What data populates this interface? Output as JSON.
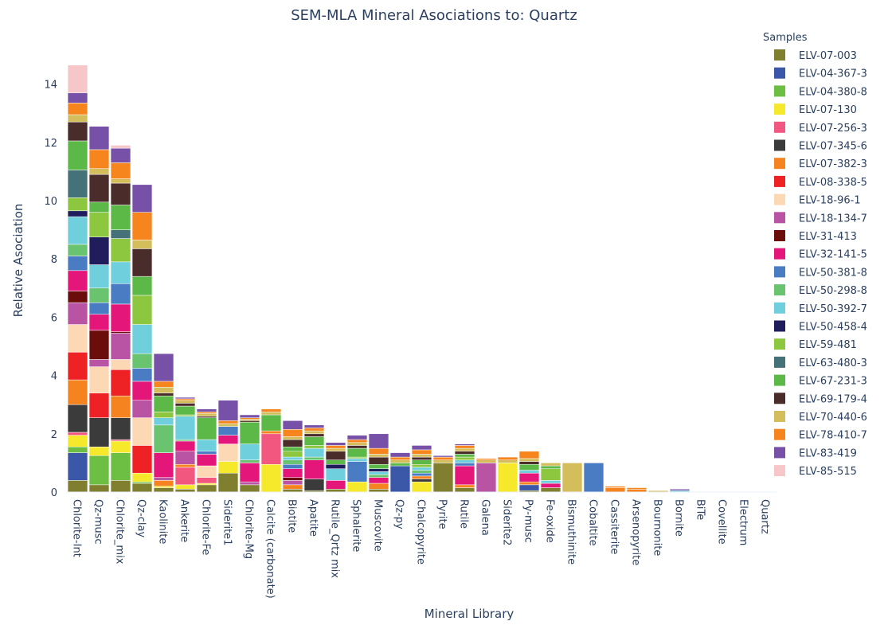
{
  "chart_data": {
    "type": "bar",
    "stacked": true,
    "title": "SEM-MLA Mineral Asociations to: Quartz",
    "xlabel": "Mineral Library",
    "ylabel": "Relative Asociation",
    "ylim": [
      0,
      15.3
    ],
    "yticks": [
      0,
      2,
      4,
      6,
      8,
      10,
      12,
      14
    ],
    "gridlines": false,
    "legend_title": "Samples",
    "legend_placement": "right",
    "categories": [
      "Chlorite-Int",
      "Qz-musc",
      "Chlorite_mix",
      "Qz-clay",
      "Kaolinite",
      "Ankerite",
      "Chlorite-Fe",
      "Siderite1",
      "Chlorite-Mg",
      "Calcite (carbonate)",
      "Biotite",
      "Apatite",
      "Rutile_Qrtz mix",
      "Sphalerite",
      "Muscovite",
      "Qz-py",
      "Chalcopyrite",
      "Pyrite",
      "Rutile",
      "Galena",
      "Siderite2",
      "Py-musc",
      "Fe-oxide",
      "Bismuthinite",
      "Cobaltite",
      "Cassiterite",
      "Arsenopyrite",
      "Bournonite",
      "Bornite",
      "BiTe",
      "Covellite",
      "Electrum",
      "Quartz"
    ],
    "series": [
      {
        "name": "ELV-07-003",
        "color": "#7f7f2f",
        "values": [
          0.4,
          0.25,
          0.4,
          0.3,
          0.15,
          0.1,
          0.25,
          0.65,
          0.25,
          0,
          0.1,
          0.05,
          0.1,
          0,
          0.1,
          0,
          0,
          1,
          0.15,
          0,
          0,
          0.05,
          0.15,
          0,
          0,
          0,
          0,
          0,
          0,
          0,
          0,
          0,
          0
        ]
      },
      {
        "name": "ELV-04-367-3",
        "color": "#3b57a8",
        "values": [
          0.95,
          0,
          0,
          0,
          0,
          0,
          0,
          0,
          0,
          0,
          0,
          0,
          0,
          0,
          0,
          0.9,
          0,
          0,
          0,
          0,
          0,
          0.2,
          0,
          0,
          0,
          0,
          0,
          0,
          0,
          0,
          0,
          0,
          0
        ]
      },
      {
        "name": "ELV-04-380-8",
        "color": "#6dbf43",
        "values": [
          0.2,
          1,
          0.95,
          0.05,
          0,
          0,
          0,
          0,
          0,
          0,
          0,
          0,
          0,
          0,
          0,
          0,
          0,
          0,
          0,
          0,
          0,
          0,
          0,
          0,
          0,
          0,
          0,
          0,
          0,
          0,
          0,
          0,
          0
        ]
      },
      {
        "name": "ELV-07-130",
        "color": "#f6e82a",
        "values": [
          0.4,
          0.3,
          0.4,
          0.3,
          0.05,
          0.15,
          0.05,
          0.4,
          0,
          0.95,
          0,
          0,
          0,
          0.35,
          0,
          0,
          0.35,
          0,
          0,
          0,
          1,
          0,
          0,
          0,
          0,
          0,
          0,
          0,
          0,
          0,
          0,
          0,
          0
        ]
      },
      {
        "name": "ELV-07-256-3",
        "color": "#f2577f",
        "values": [
          0.1,
          0,
          0.05,
          0,
          0,
          0.6,
          0.2,
          0,
          0,
          1.05,
          0,
          0,
          0,
          0,
          0,
          0,
          0,
          0,
          0,
          0,
          0,
          0,
          0,
          0,
          0,
          0,
          0,
          0,
          0,
          0,
          0,
          0,
          0
        ]
      },
      {
        "name": "ELV-07-345-6",
        "color": "#3b3b3b",
        "values": [
          0.95,
          1,
          0.75,
          0,
          0,
          0,
          0,
          0,
          0,
          0,
          0,
          0.4,
          0,
          0,
          0,
          0,
          0.1,
          0,
          0,
          0,
          0,
          0,
          0,
          0,
          0,
          0,
          0,
          0,
          0,
          0,
          0,
          0,
          0
        ]
      },
      {
        "name": "ELV-07-382-3",
        "color": "#f5831f",
        "values": [
          0.85,
          0,
          0.75,
          0,
          0.2,
          0.1,
          0,
          0,
          0,
          0.1,
          0.15,
          0,
          0,
          0,
          0.2,
          0,
          0.1,
          0,
          0.1,
          0,
          0,
          0.1,
          0,
          0,
          0,
          0.15,
          0.1,
          0,
          0,
          0,
          0,
          0,
          0
        ]
      },
      {
        "name": "ELV-08-338-5",
        "color": "#ee2125",
        "values": [
          0.95,
          0.85,
          0.9,
          0.95,
          0,
          0,
          0,
          0,
          0,
          0,
          0,
          0,
          0,
          0,
          0,
          0,
          0,
          0,
          0,
          0,
          0,
          0,
          0,
          0,
          0,
          0,
          0,
          0,
          0,
          0,
          0,
          0,
          0
        ]
      },
      {
        "name": "ELV-18-96-1",
        "color": "#fcd8b5",
        "values": [
          0.95,
          0.9,
          0.35,
          0.95,
          0,
          0,
          0.4,
          0.6,
          0,
          0,
          0,
          0,
          0,
          0,
          0,
          0,
          0,
          0,
          0,
          0,
          0,
          0,
          0,
          0,
          0,
          0,
          0,
          0,
          0,
          0,
          0,
          0,
          0
        ]
      },
      {
        "name": "ELV-18-134-7",
        "color": "#b954a5",
        "values": [
          0.75,
          0.25,
          0.9,
          0.6,
          0.1,
          0.45,
          0,
          0,
          0.1,
          0,
          0.15,
          0,
          0,
          0,
          0,
          0,
          0,
          0,
          0,
          1,
          0,
          0,
          0,
          0,
          0,
          0,
          0,
          0,
          0,
          0,
          0,
          0,
          0
        ]
      },
      {
        "name": "ELV-31-413",
        "color": "#6a0d0b",
        "values": [
          0.4,
          1,
          0.05,
          0,
          0,
          0,
          0,
          0,
          0,
          0,
          0.1,
          0,
          0,
          0,
          0,
          0,
          0,
          0,
          0,
          0,
          0,
          0,
          0,
          0,
          0,
          0,
          0,
          0,
          0,
          0,
          0,
          0,
          0
        ]
      },
      {
        "name": "ELV-32-141-5",
        "color": "#e4167a",
        "values": [
          0.7,
          0.55,
          0.95,
          0.65,
          0.85,
          0.35,
          0.4,
          0.3,
          0.65,
          0,
          0.3,
          0.65,
          0.3,
          0,
          0.2,
          0,
          0,
          0,
          0.65,
          0,
          0,
          0.3,
          0.15,
          0,
          0,
          0,
          0,
          0,
          0,
          0,
          0,
          0,
          0
        ]
      },
      {
        "name": "ELV-50-381-8",
        "color": "#4a7cc4",
        "values": [
          0.5,
          0.4,
          0.7,
          0.45,
          0,
          0,
          0.1,
          0.3,
          0,
          0,
          0.15,
          0,
          0,
          0.7,
          0,
          0,
          0.1,
          0,
          0.1,
          0,
          0,
          0,
          0,
          0,
          1,
          0,
          0,
          0,
          0,
          0,
          0,
          0,
          0
        ]
      },
      {
        "name": "ELV-50-298-8",
        "color": "#69c36f",
        "values": [
          0.4,
          0.5,
          0,
          0.5,
          0.95,
          0.05,
          0,
          0,
          0.1,
          0,
          0.15,
          0.1,
          0,
          0,
          0.1,
          0,
          0.1,
          0,
          0,
          0,
          0,
          0,
          0,
          0,
          0,
          0,
          0,
          0,
          0,
          0,
          0,
          0,
          0
        ]
      },
      {
        "name": "ELV-50-392-7",
        "color": "#6fcfdd",
        "values": [
          0.95,
          0.8,
          0.75,
          1,
          0.25,
          0.8,
          0.4,
          0,
          0.55,
          0,
          0.1,
          0.3,
          0.4,
          0.1,
          0.1,
          0,
          0.1,
          0,
          0.1,
          0,
          0,
          0.1,
          0.1,
          0,
          0,
          0,
          0,
          0,
          0.05,
          0,
          0,
          0,
          0
        ]
      },
      {
        "name": "ELV-50-458-4",
        "color": "#1f1d5c",
        "values": [
          0.2,
          0.95,
          0,
          0,
          0,
          0,
          0,
          0,
          0,
          0,
          0,
          0,
          0.15,
          0,
          0.1,
          0,
          0,
          0,
          0,
          0,
          0,
          0,
          0,
          0,
          0,
          0,
          0,
          0,
          0,
          0,
          0,
          0,
          0
        ]
      },
      {
        "name": "ELV-59-481",
        "color": "#8dc73f",
        "values": [
          0.45,
          0.85,
          0.8,
          1,
          0.2,
          0.05,
          0,
          0,
          0,
          0,
          0.2,
          0.1,
          0,
          0.05,
          0,
          0,
          0.1,
          0,
          0.1,
          0,
          0,
          0,
          0.4,
          0,
          0,
          0,
          0,
          0,
          0,
          0,
          0,
          0,
          0
        ]
      },
      {
        "name": "ELV-63-480-3",
        "color": "#457179",
        "values": [
          0.95,
          0,
          0.3,
          0,
          0,
          0,
          0,
          0,
          0,
          0,
          0,
          0,
          0,
          0,
          0,
          0,
          0,
          0,
          0,
          0,
          0,
          0,
          0,
          0,
          0,
          0,
          0,
          0,
          0,
          0,
          0,
          0,
          0
        ]
      },
      {
        "name": "ELV-67-231-3",
        "color": "#5cb847",
        "values": [
          1,
          0.35,
          0.85,
          0.65,
          0.55,
          0.3,
          0.75,
          0,
          0.75,
          0.55,
          0.15,
          0.3,
          0.15,
          0.3,
          0.15,
          0.1,
          0.15,
          0,
          0.1,
          0,
          0,
          0.2,
          0.1,
          0,
          0,
          0,
          0,
          0,
          0,
          0,
          0,
          0,
          0
        ]
      },
      {
        "name": "ELV-69-179-4",
        "color": "#4a2c2a",
        "values": [
          0.65,
          0.95,
          0.75,
          0.95,
          0.1,
          0.1,
          0.05,
          0,
          0.05,
          0,
          0.25,
          0.1,
          0.3,
          0.1,
          0.25,
          0,
          0.1,
          0,
          0.1,
          0,
          0,
          0.1,
          0,
          0,
          0,
          0,
          0,
          0,
          0,
          0,
          0,
          0,
          0
        ]
      },
      {
        "name": "ELV-70-440-6",
        "color": "#d4bd5b",
        "values": [
          0.25,
          0.2,
          0.15,
          0.3,
          0.2,
          0.1,
          0.1,
          0.1,
          0.05,
          0.1,
          0.1,
          0.1,
          0.1,
          0.1,
          0.1,
          0.1,
          0.1,
          0.1,
          0.1,
          0.1,
          0.1,
          0.1,
          0.1,
          1,
          0,
          0,
          0,
          0.05,
          0,
          0,
          0,
          0,
          0
        ]
      },
      {
        "name": "ELV-78-410-7",
        "color": "#f7851d",
        "values": [
          0.4,
          0.65,
          0.55,
          0.95,
          0.2,
          0.05,
          0.05,
          0.1,
          0.05,
          0.1,
          0.25,
          0.1,
          0.1,
          0.1,
          0.2,
          0.1,
          0.15,
          0.1,
          0.1,
          0.05,
          0.1,
          0.25,
          0,
          0,
          0,
          0.05,
          0.05,
          0,
          0,
          0,
          0,
          0,
          0
        ]
      },
      {
        "name": "ELV-83-419",
        "color": "#7750a8",
        "values": [
          0.35,
          0.8,
          0.5,
          0.95,
          0.95,
          0.05,
          0.1,
          0.7,
          0.1,
          0,
          0.3,
          0.1,
          0.1,
          0.15,
          0.5,
          0.15,
          0.15,
          0.05,
          0.05,
          0,
          0,
          0,
          0,
          0,
          0,
          0,
          0,
          0,
          0.05,
          0,
          0,
          0,
          0
        ]
      },
      {
        "name": "ELV-85-515",
        "color": "#f7c6c8",
        "values": [
          0.95,
          0,
          0.1,
          0,
          0,
          0,
          0,
          0,
          0,
          0,
          0,
          0,
          0,
          0,
          0,
          0,
          0,
          0,
          0,
          0,
          0,
          0,
          0,
          0,
          0,
          0,
          0,
          0,
          0,
          0,
          0,
          0,
          0
        ]
      }
    ]
  }
}
